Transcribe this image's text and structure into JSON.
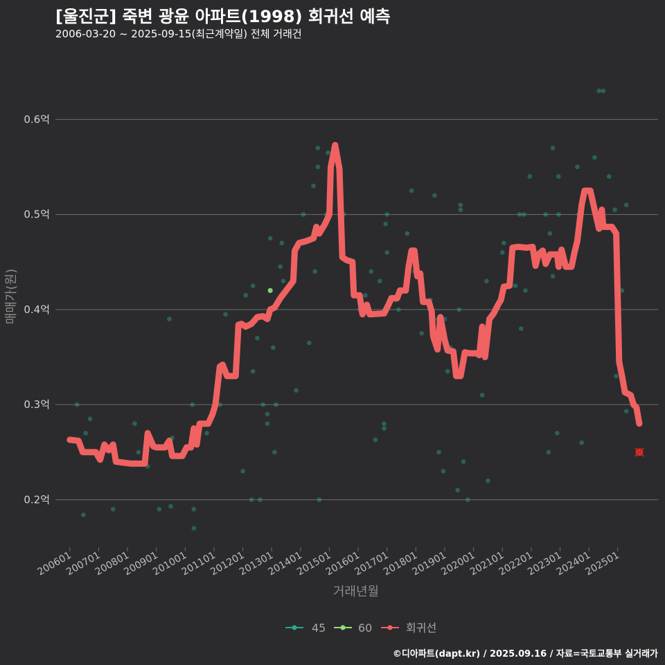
{
  "title": "[울진군] 죽변 광윤 아파트(1998) 회귀선 예측",
  "subtitle": "2006-03-20 ~ 2025-09-15(최근계약일) 전체 거래건",
  "credit": "©디아파트(dapt.kr) / 2025.09.16 / 자료=국토교통부 실거래가",
  "colors": {
    "background": "#2b2b2d",
    "grid": "#6e6e6e",
    "series_45": "#2ca58d",
    "series_60": "#8fe07a",
    "regression": "#f06262",
    "prediction_marker": "#d62020"
  },
  "chart_data": {
    "type": "scatter",
    "title": "[울진군] 죽변 광윤 아파트(1998) 회귀선 예측",
    "xlabel": "거래년월",
    "ylabel": "매매가(원)",
    "xlim": [
      2005.5,
      2026.4
    ],
    "ylim": [
      0.15,
      0.66
    ],
    "y_ticks": [
      {
        "value": 0.2,
        "label": "0.2억"
      },
      {
        "value": 0.3,
        "label": "0.3억"
      },
      {
        "value": 0.4,
        "label": "0.4억"
      },
      {
        "value": 0.5,
        "label": "0.5억"
      },
      {
        "value": 0.6,
        "label": "0.6억"
      }
    ],
    "x_ticks": [
      {
        "value": 2006.0,
        "label": "200601"
      },
      {
        "value": 2007.0,
        "label": "200701"
      },
      {
        "value": 2008.0,
        "label": "200801"
      },
      {
        "value": 2009.0,
        "label": "200901"
      },
      {
        "value": 2010.0,
        "label": "201001"
      },
      {
        "value": 2011.0,
        "label": "201101"
      },
      {
        "value": 2012.0,
        "label": "201201"
      },
      {
        "value": 2013.0,
        "label": "201301"
      },
      {
        "value": 2014.0,
        "label": "201401"
      },
      {
        "value": 2015.0,
        "label": "201501"
      },
      {
        "value": 2016.0,
        "label": "201601"
      },
      {
        "value": 2017.0,
        "label": "201701"
      },
      {
        "value": 2018.0,
        "label": "201801"
      },
      {
        "value": 2019.0,
        "label": "201901"
      },
      {
        "value": 2020.0,
        "label": "202001"
      },
      {
        "value": 2021.0,
        "label": "202101"
      },
      {
        "value": 2022.0,
        "label": "202201"
      },
      {
        "value": 2023.0,
        "label": "202301"
      },
      {
        "value": 2024.0,
        "label": "202401"
      },
      {
        "value": 2025.0,
        "label": "202501"
      }
    ],
    "legend": {
      "position": "bottom",
      "items": [
        {
          "key": "45",
          "label": "45"
        },
        {
          "key": "60",
          "label": "60"
        },
        {
          "key": "reg",
          "label": "회귀선"
        }
      ]
    },
    "scatter": [
      {
        "x": 2006.25,
        "y": 0.3,
        "s": "45"
      },
      {
        "x": 2006.47,
        "y": 0.184,
        "s": "45"
      },
      {
        "x": 2006.55,
        "y": 0.27,
        "s": "45"
      },
      {
        "x": 2006.7,
        "y": 0.285,
        "s": "45"
      },
      {
        "x": 2007.5,
        "y": 0.19,
        "s": "45"
      },
      {
        "x": 2008.25,
        "y": 0.28,
        "s": "45"
      },
      {
        "x": 2008.38,
        "y": 0.25,
        "s": "45"
      },
      {
        "x": 2008.7,
        "y": 0.235,
        "s": "45"
      },
      {
        "x": 2009.1,
        "y": 0.19,
        "s": "45"
      },
      {
        "x": 2009.45,
        "y": 0.39,
        "s": "45"
      },
      {
        "x": 2009.5,
        "y": 0.193,
        "s": "45"
      },
      {
        "x": 2009.55,
        "y": 0.265,
        "s": "45"
      },
      {
        "x": 2010.25,
        "y": 0.3,
        "s": "45"
      },
      {
        "x": 2010.3,
        "y": 0.19,
        "s": "45"
      },
      {
        "x": 2010.3,
        "y": 0.17,
        "s": "45"
      },
      {
        "x": 2010.75,
        "y": 0.27,
        "s": "45"
      },
      {
        "x": 2011.2,
        "y": 0.3,
        "s": "45"
      },
      {
        "x": 2011.4,
        "y": 0.395,
        "s": "45"
      },
      {
        "x": 2012.0,
        "y": 0.23,
        "s": "45"
      },
      {
        "x": 2012.1,
        "y": 0.415,
        "s": "45"
      },
      {
        "x": 2012.3,
        "y": 0.2,
        "s": "45"
      },
      {
        "x": 2012.35,
        "y": 0.425,
        "s": "45"
      },
      {
        "x": 2012.35,
        "y": 0.335,
        "s": "45"
      },
      {
        "x": 2012.5,
        "y": 0.37,
        "s": "45"
      },
      {
        "x": 2012.6,
        "y": 0.2,
        "s": "45"
      },
      {
        "x": 2012.7,
        "y": 0.3,
        "s": "45"
      },
      {
        "x": 2012.85,
        "y": 0.29,
        "s": "45"
      },
      {
        "x": 2012.85,
        "y": 0.28,
        "s": "45"
      },
      {
        "x": 2012.95,
        "y": 0.475,
        "s": "45"
      },
      {
        "x": 2013.05,
        "y": 0.36,
        "s": "45"
      },
      {
        "x": 2013.1,
        "y": 0.25,
        "s": "45"
      },
      {
        "x": 2013.15,
        "y": 0.3,
        "s": "45"
      },
      {
        "x": 2013.3,
        "y": 0.445,
        "s": "45"
      },
      {
        "x": 2013.35,
        "y": 0.47,
        "s": "45"
      },
      {
        "x": 2013.4,
        "y": 0.43,
        "s": "45"
      },
      {
        "x": 2013.85,
        "y": 0.315,
        "s": "45"
      },
      {
        "x": 2014.1,
        "y": 0.5,
        "s": "45"
      },
      {
        "x": 2014.3,
        "y": 0.365,
        "s": "45"
      },
      {
        "x": 2014.45,
        "y": 0.53,
        "s": "45"
      },
      {
        "x": 2014.5,
        "y": 0.44,
        "s": "45"
      },
      {
        "x": 2014.6,
        "y": 0.55,
        "s": "45"
      },
      {
        "x": 2014.6,
        "y": 0.57,
        "s": "45"
      },
      {
        "x": 2014.65,
        "y": 0.2,
        "s": "45"
      },
      {
        "x": 2014.9,
        "y": 0.5,
        "s": "45"
      },
      {
        "x": 2014.95,
        "y": 0.565,
        "s": "45"
      },
      {
        "x": 2015.0,
        "y": 0.5,
        "s": "45"
      },
      {
        "x": 2015.5,
        "y": 0.5,
        "s": "45"
      },
      {
        "x": 2016.05,
        "y": 0.4,
        "s": "45"
      },
      {
        "x": 2016.25,
        "y": 0.415,
        "s": "45"
      },
      {
        "x": 2016.45,
        "y": 0.44,
        "s": "45"
      },
      {
        "x": 2016.6,
        "y": 0.263,
        "s": "45"
      },
      {
        "x": 2016.75,
        "y": 0.43,
        "s": "45"
      },
      {
        "x": 2016.9,
        "y": 0.28,
        "s": "45"
      },
      {
        "x": 2016.9,
        "y": 0.275,
        "s": "45"
      },
      {
        "x": 2016.95,
        "y": 0.49,
        "s": "45"
      },
      {
        "x": 2017.0,
        "y": 0.46,
        "s": "45"
      },
      {
        "x": 2017.0,
        "y": 0.5,
        "s": "45"
      },
      {
        "x": 2017.3,
        "y": 0.41,
        "s": "45"
      },
      {
        "x": 2017.4,
        "y": 0.4,
        "s": "45"
      },
      {
        "x": 2017.7,
        "y": 0.48,
        "s": "45"
      },
      {
        "x": 2017.85,
        "y": 0.525,
        "s": "45"
      },
      {
        "x": 2017.95,
        "y": 0.44,
        "s": "45"
      },
      {
        "x": 2018.2,
        "y": 0.375,
        "s": "45"
      },
      {
        "x": 2018.5,
        "y": 0.41,
        "s": "45"
      },
      {
        "x": 2018.65,
        "y": 0.52,
        "s": "45"
      },
      {
        "x": 2018.75,
        "y": 0.39,
        "s": "45"
      },
      {
        "x": 2018.8,
        "y": 0.25,
        "s": "45"
      },
      {
        "x": 2018.95,
        "y": 0.23,
        "s": "45"
      },
      {
        "x": 2019.0,
        "y": 0.39,
        "s": "45"
      },
      {
        "x": 2019.1,
        "y": 0.335,
        "s": "45"
      },
      {
        "x": 2019.2,
        "y": 0.36,
        "s": "45"
      },
      {
        "x": 2019.45,
        "y": 0.21,
        "s": "45"
      },
      {
        "x": 2019.5,
        "y": 0.4,
        "s": "45"
      },
      {
        "x": 2019.55,
        "y": 0.51,
        "s": "45"
      },
      {
        "x": 2019.55,
        "y": 0.505,
        "s": "45"
      },
      {
        "x": 2019.65,
        "y": 0.24,
        "s": "45"
      },
      {
        "x": 2019.8,
        "y": 0.2,
        "s": "45"
      },
      {
        "x": 2020.3,
        "y": 0.31,
        "s": "45"
      },
      {
        "x": 2020.45,
        "y": 0.43,
        "s": "45"
      },
      {
        "x": 2020.5,
        "y": 0.22,
        "s": "45"
      },
      {
        "x": 2020.95,
        "y": 0.41,
        "s": "45"
      },
      {
        "x": 2021.0,
        "y": 0.46,
        "s": "45"
      },
      {
        "x": 2021.05,
        "y": 0.47,
        "s": "45"
      },
      {
        "x": 2021.45,
        "y": 0.425,
        "s": "45"
      },
      {
        "x": 2021.6,
        "y": 0.5,
        "s": "45"
      },
      {
        "x": 2021.65,
        "y": 0.38,
        "s": "45"
      },
      {
        "x": 2021.75,
        "y": 0.5,
        "s": "45"
      },
      {
        "x": 2021.8,
        "y": 0.42,
        "s": "45"
      },
      {
        "x": 2021.95,
        "y": 0.54,
        "s": "45"
      },
      {
        "x": 2022.15,
        "y": 0.46,
        "s": "45"
      },
      {
        "x": 2022.5,
        "y": 0.5,
        "s": "45"
      },
      {
        "x": 2022.6,
        "y": 0.25,
        "s": "45"
      },
      {
        "x": 2022.65,
        "y": 0.48,
        "s": "45"
      },
      {
        "x": 2022.75,
        "y": 0.57,
        "s": "45"
      },
      {
        "x": 2022.75,
        "y": 0.435,
        "s": "45"
      },
      {
        "x": 2022.9,
        "y": 0.27,
        "s": "45"
      },
      {
        "x": 2022.95,
        "y": 0.5,
        "s": "45"
      },
      {
        "x": 2022.95,
        "y": 0.54,
        "s": "45"
      },
      {
        "x": 2023.6,
        "y": 0.55,
        "s": "45"
      },
      {
        "x": 2023.65,
        "y": 0.5,
        "s": "45"
      },
      {
        "x": 2023.75,
        "y": 0.26,
        "s": "45"
      },
      {
        "x": 2024.2,
        "y": 0.56,
        "s": "45"
      },
      {
        "x": 2024.35,
        "y": 0.63,
        "s": "45"
      },
      {
        "x": 2024.5,
        "y": 0.63,
        "s": "45"
      },
      {
        "x": 2024.7,
        "y": 0.54,
        "s": "45"
      },
      {
        "x": 2024.9,
        "y": 0.505,
        "s": "45"
      },
      {
        "x": 2024.95,
        "y": 0.33,
        "s": "45"
      },
      {
        "x": 2025.15,
        "y": 0.42,
        "s": "45"
      },
      {
        "x": 2025.3,
        "y": 0.51,
        "s": "45"
      },
      {
        "x": 2025.3,
        "y": 0.293,
        "s": "45"
      },
      {
        "x": 2012.95,
        "y": 0.42,
        "s": "60"
      },
      {
        "x": 2012.95,
        "y": 0.4,
        "s": "60"
      }
    ],
    "regression_line": [
      [
        2006.0,
        0.263
      ],
      [
        2006.3,
        0.262
      ],
      [
        2006.45,
        0.25
      ],
      [
        2006.9,
        0.25
      ],
      [
        2007.05,
        0.242
      ],
      [
        2007.2,
        0.258
      ],
      [
        2007.35,
        0.252
      ],
      [
        2007.5,
        0.258
      ],
      [
        2007.6,
        0.24
      ],
      [
        2008.1,
        0.238
      ],
      [
        2008.6,
        0.238
      ],
      [
        2008.7,
        0.27
      ],
      [
        2008.9,
        0.256
      ],
      [
        2009.0,
        0.255
      ],
      [
        2009.3,
        0.255
      ],
      [
        2009.45,
        0.262
      ],
      [
        2009.55,
        0.246
      ],
      [
        2009.9,
        0.246
      ],
      [
        2010.05,
        0.255
      ],
      [
        2010.2,
        0.255
      ],
      [
        2010.3,
        0.275
      ],
      [
        2010.4,
        0.258
      ],
      [
        2010.5,
        0.28
      ],
      [
        2010.8,
        0.28
      ],
      [
        2010.95,
        0.29
      ],
      [
        2011.05,
        0.3
      ],
      [
        2011.2,
        0.34
      ],
      [
        2011.3,
        0.342
      ],
      [
        2011.45,
        0.33
      ],
      [
        2011.75,
        0.33
      ],
      [
        2011.85,
        0.384
      ],
      [
        2011.95,
        0.385
      ],
      [
        2012.1,
        0.382
      ],
      [
        2012.3,
        0.385
      ],
      [
        2012.5,
        0.392
      ],
      [
        2012.7,
        0.393
      ],
      [
        2012.85,
        0.39
      ],
      [
        2012.95,
        0.4
      ],
      [
        2013.1,
        0.402
      ],
      [
        2013.3,
        0.412
      ],
      [
        2013.55,
        0.422
      ],
      [
        2013.75,
        0.43
      ],
      [
        2013.8,
        0.462
      ],
      [
        2013.95,
        0.47
      ],
      [
        2014.2,
        0.472
      ],
      [
        2014.45,
        0.475
      ],
      [
        2014.55,
        0.487
      ],
      [
        2014.65,
        0.48
      ],
      [
        2014.85,
        0.49
      ],
      [
        2015.0,
        0.5
      ],
      [
        2015.05,
        0.55
      ],
      [
        2015.2,
        0.573
      ],
      [
        2015.35,
        0.548
      ],
      [
        2015.45,
        0.455
      ],
      [
        2015.6,
        0.452
      ],
      [
        2015.8,
        0.45
      ],
      [
        2015.85,
        0.415
      ],
      [
        2016.05,
        0.415
      ],
      [
        2016.15,
        0.395
      ],
      [
        2016.3,
        0.405
      ],
      [
        2016.4,
        0.395
      ],
      [
        2016.9,
        0.396
      ],
      [
        2017.05,
        0.405
      ],
      [
        2017.15,
        0.412
      ],
      [
        2017.35,
        0.412
      ],
      [
        2017.45,
        0.42
      ],
      [
        2017.65,
        0.42
      ],
      [
        2017.75,
        0.445
      ],
      [
        2017.85,
        0.462
      ],
      [
        2017.95,
        0.462
      ],
      [
        2018.05,
        0.435
      ],
      [
        2018.15,
        0.438
      ],
      [
        2018.25,
        0.408
      ],
      [
        2018.45,
        0.408
      ],
      [
        2018.55,
        0.398
      ],
      [
        2018.6,
        0.372
      ],
      [
        2018.75,
        0.358
      ],
      [
        2018.85,
        0.392
      ],
      [
        2019.0,
        0.368
      ],
      [
        2019.1,
        0.357
      ],
      [
        2019.3,
        0.356
      ],
      [
        2019.4,
        0.33
      ],
      [
        2019.55,
        0.33
      ],
      [
        2019.7,
        0.355
      ],
      [
        2019.85,
        0.354
      ],
      [
        2020.1,
        0.354
      ],
      [
        2020.2,
        0.352
      ],
      [
        2020.3,
        0.382
      ],
      [
        2020.4,
        0.35
      ],
      [
        2020.55,
        0.39
      ],
      [
        2020.7,
        0.396
      ],
      [
        2020.85,
        0.405
      ],
      [
        2020.95,
        0.41
      ],
      [
        2021.05,
        0.424
      ],
      [
        2021.25,
        0.425
      ],
      [
        2021.35,
        0.465
      ],
      [
        2021.55,
        0.466
      ],
      [
        2021.85,
        0.465
      ],
      [
        2022.05,
        0.466
      ],
      [
        2022.15,
        0.446
      ],
      [
        2022.25,
        0.458
      ],
      [
        2022.4,
        0.462
      ],
      [
        2022.5,
        0.448
      ],
      [
        2022.65,
        0.458
      ],
      [
        2022.9,
        0.458
      ],
      [
        2022.95,
        0.445
      ],
      [
        2023.05,
        0.463
      ],
      [
        2023.2,
        0.445
      ],
      [
        2023.4,
        0.445
      ],
      [
        2023.5,
        0.46
      ],
      [
        2023.6,
        0.472
      ],
      [
        2023.75,
        0.51
      ],
      [
        2023.85,
        0.525
      ],
      [
        2024.05,
        0.525
      ],
      [
        2024.2,
        0.505
      ],
      [
        2024.35,
        0.485
      ],
      [
        2024.45,
        0.505
      ],
      [
        2024.5,
        0.487
      ],
      [
        2024.8,
        0.487
      ],
      [
        2024.95,
        0.48
      ],
      [
        2025.05,
        0.345
      ],
      [
        2025.15,
        0.33
      ],
      [
        2025.25,
        0.313
      ],
      [
        2025.45,
        0.31
      ],
      [
        2025.55,
        0.3
      ],
      [
        2025.65,
        0.297
      ],
      [
        2025.75,
        0.28
      ]
    ],
    "prediction": {
      "x": 2025.75,
      "y": 0.25
    }
  }
}
